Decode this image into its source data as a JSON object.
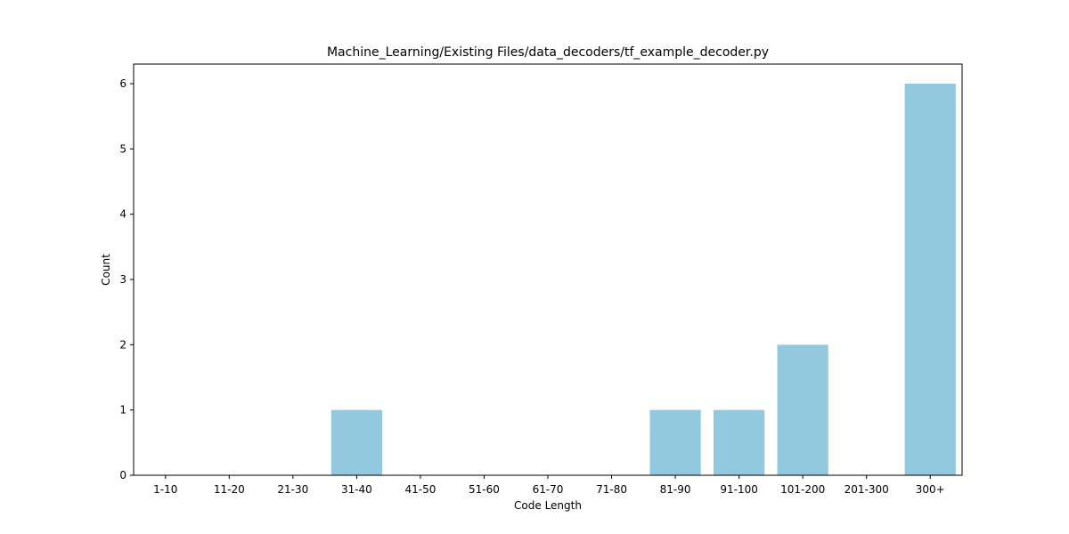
{
  "chart_data": {
    "type": "bar",
    "title": "Machine_Learning/Existing Files/data_decoders/tf_example_decoder.py",
    "xlabel": "Code Length",
    "ylabel": "Count",
    "categories": [
      "1-10",
      "11-20",
      "21-30",
      "31-40",
      "41-50",
      "51-60",
      "61-70",
      "71-80",
      "81-90",
      "91-100",
      "101-200",
      "201-300",
      "300+"
    ],
    "values": [
      0,
      0,
      0,
      1,
      0,
      0,
      0,
      0,
      1,
      1,
      2,
      0,
      6
    ],
    "ylim": [
      0,
      6.3
    ],
    "yticks": [
      0,
      1,
      2,
      3,
      4,
      5,
      6
    ],
    "bar_color": "#92c9de",
    "grid": false,
    "legend": "none"
  }
}
